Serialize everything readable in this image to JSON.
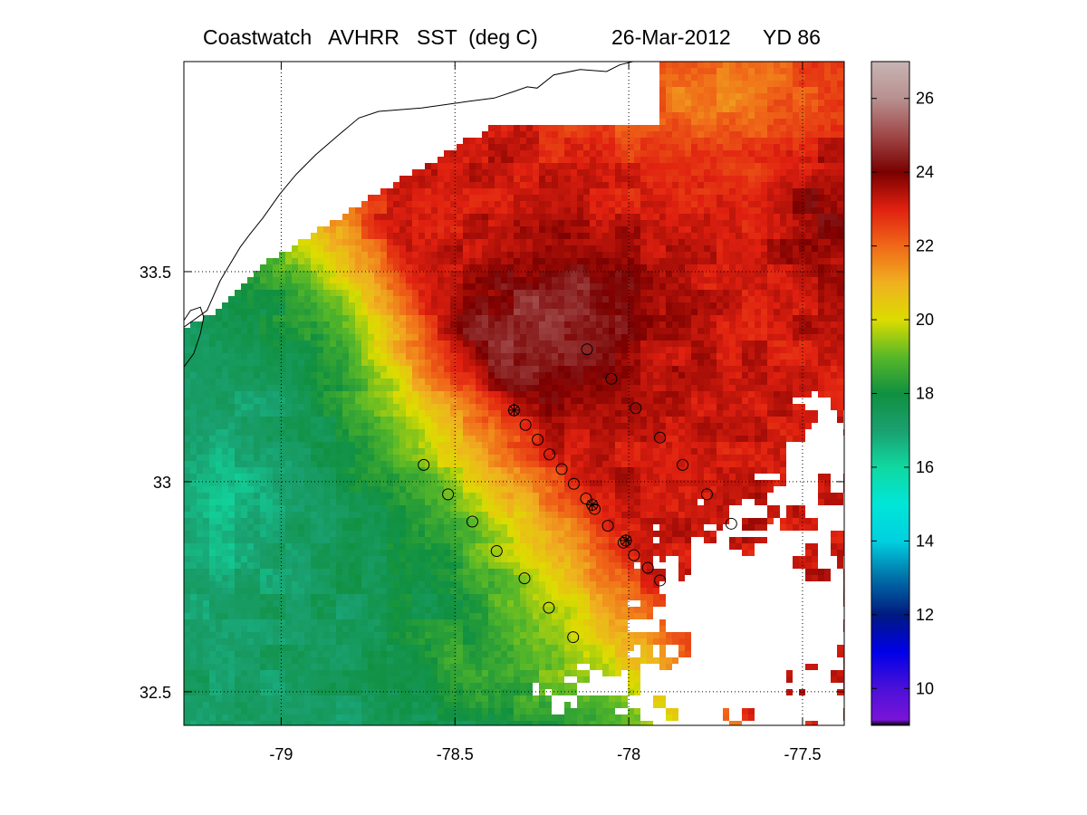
{
  "title": {
    "product": "Coastwatch   AVHRR   SST  (deg C)",
    "date": "26-Mar-2012",
    "yearday": "YD 86"
  },
  "map": {
    "x_axis": {
      "ticks": [
        -79,
        -78.5,
        -78,
        -77.5
      ],
      "tick_labels": [
        "-79",
        "-78.5",
        "-78",
        "-77.5"
      ],
      "range": [
        -79.28,
        -77.38
      ]
    },
    "y_axis": {
      "ticks": [
        32.5,
        33,
        33.5
      ],
      "tick_labels": [
        "32.5",
        "33",
        "33.5"
      ],
      "range": [
        32.42,
        34.0
      ]
    },
    "grid": "dotted",
    "coastline_color": "#000000",
    "station_marker": "open-circle",
    "starred_marker": "circle-with-star",
    "stations": [
      {
        "lon": -78.12,
        "lat": 33.315
      },
      {
        "lon": -78.05,
        "lat": 33.245
      },
      {
        "lon": -77.98,
        "lat": 33.175
      },
      {
        "lon": -77.91,
        "lat": 33.105
      },
      {
        "lon": -77.845,
        "lat": 33.04
      },
      {
        "lon": -77.775,
        "lat": 32.97
      },
      {
        "lon": -77.705,
        "lat": 32.9
      },
      {
        "lon": -78.33,
        "lat": 33.17
      },
      {
        "lon": -78.297,
        "lat": 33.135
      },
      {
        "lon": -78.262,
        "lat": 33.1
      },
      {
        "lon": -78.228,
        "lat": 33.065
      },
      {
        "lon": -78.193,
        "lat": 33.03
      },
      {
        "lon": -78.158,
        "lat": 32.995
      },
      {
        "lon": -78.123,
        "lat": 32.96
      },
      {
        "lon": -78.098,
        "lat": 32.935
      },
      {
        "lon": -78.06,
        "lat": 32.895
      },
      {
        "lon": -78.015,
        "lat": 32.855
      },
      {
        "lon": -77.985,
        "lat": 32.825
      },
      {
        "lon": -77.945,
        "lat": 32.795
      },
      {
        "lon": -77.91,
        "lat": 32.765
      },
      {
        "lon": -78.59,
        "lat": 33.04
      },
      {
        "lon": -78.52,
        "lat": 32.97
      },
      {
        "lon": -78.45,
        "lat": 32.905
      },
      {
        "lon": -78.38,
        "lat": 32.835
      },
      {
        "lon": -78.3,
        "lat": 32.77
      },
      {
        "lon": -78.23,
        "lat": 32.7
      },
      {
        "lon": -78.16,
        "lat": 32.63
      }
    ],
    "starred_stations": [
      {
        "lon": -78.33,
        "lat": 33.17
      },
      {
        "lon": -78.105,
        "lat": 32.945
      },
      {
        "lon": -78.008,
        "lat": 32.86
      }
    ]
  },
  "colorbar": {
    "label_values": [
      10,
      12,
      14,
      16,
      18,
      20,
      22,
      24,
      26
    ],
    "tick_labels": [
      "10",
      "12",
      "14",
      "16",
      "18",
      "20",
      "22",
      "24",
      "26"
    ],
    "range": [
      9,
      27
    ],
    "color_stops": [
      {
        "v": 9.0,
        "c": "#000000"
      },
      {
        "v": 9.15,
        "c": "#7a14d8"
      },
      {
        "v": 10.0,
        "c": "#4a10d8"
      },
      {
        "v": 11.0,
        "c": "#0000e8"
      },
      {
        "v": 12.0,
        "c": "#001a80"
      },
      {
        "v": 13.0,
        "c": "#0070a8"
      },
      {
        "v": 14.0,
        "c": "#00d0e0"
      },
      {
        "v": 15.0,
        "c": "#00e6d8"
      },
      {
        "v": 16.0,
        "c": "#10d8a0"
      },
      {
        "v": 17.0,
        "c": "#1aa070"
      },
      {
        "v": 18.0,
        "c": "#109040"
      },
      {
        "v": 19.0,
        "c": "#58b828"
      },
      {
        "v": 20.0,
        "c": "#dcdc00"
      },
      {
        "v": 21.0,
        "c": "#f0b020"
      },
      {
        "v": 22.0,
        "c": "#f06818"
      },
      {
        "v": 23.0,
        "c": "#e02010"
      },
      {
        "v": 24.0,
        "c": "#7a0000"
      },
      {
        "v": 25.0,
        "c": "#a04848"
      },
      {
        "v": 26.0,
        "c": "#b89090"
      },
      {
        "v": 27.0,
        "c": "#c8b4b4"
      }
    ]
  }
}
